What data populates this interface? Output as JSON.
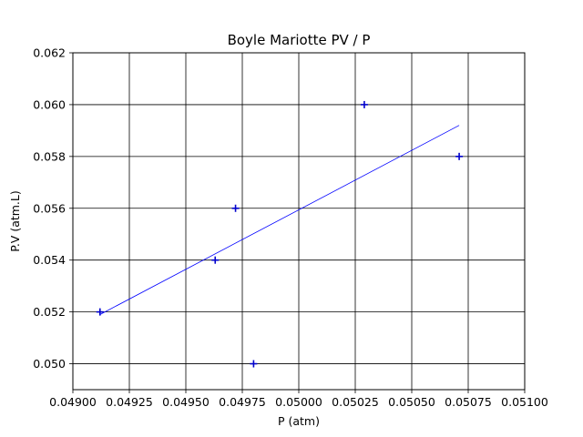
{
  "chart_data": {
    "type": "scatter",
    "title": "Boyle Mariotte PV / P",
    "xlabel": "P (atm)",
    "ylabel": "P.V (atm.L)",
    "xlim": [
      0.049,
      0.051
    ],
    "ylim": [
      0.049,
      0.062
    ],
    "xticks": [
      0.049,
      0.04925,
      0.0495,
      0.04975,
      0.05,
      0.05025,
      0.0505,
      0.05075,
      0.051
    ],
    "xtick_labels": [
      "0.04900",
      "0.04925",
      "0.04950",
      "0.04975",
      "0.05000",
      "0.05025",
      "0.05050",
      "0.05075",
      "0.05100"
    ],
    "yticks": [
      0.05,
      0.052,
      0.054,
      0.056,
      0.058,
      0.06,
      0.062
    ],
    "ytick_labels": [
      "0.050",
      "0.052",
      "0.054",
      "0.056",
      "0.058",
      "0.060",
      "0.062"
    ],
    "grid": true,
    "series": [
      {
        "type": "scatter",
        "marker": "+",
        "color": "#0000cc",
        "x": [
          0.04912,
          0.04963,
          0.04972,
          0.0498,
          0.05029,
          0.05071
        ],
        "y": [
          0.052,
          0.054,
          0.056,
          0.05,
          0.06,
          0.058
        ]
      },
      {
        "type": "line",
        "color": "#0000ff",
        "x": [
          0.04912,
          0.05071
        ],
        "y": [
          0.0519,
          0.0592
        ]
      }
    ]
  }
}
